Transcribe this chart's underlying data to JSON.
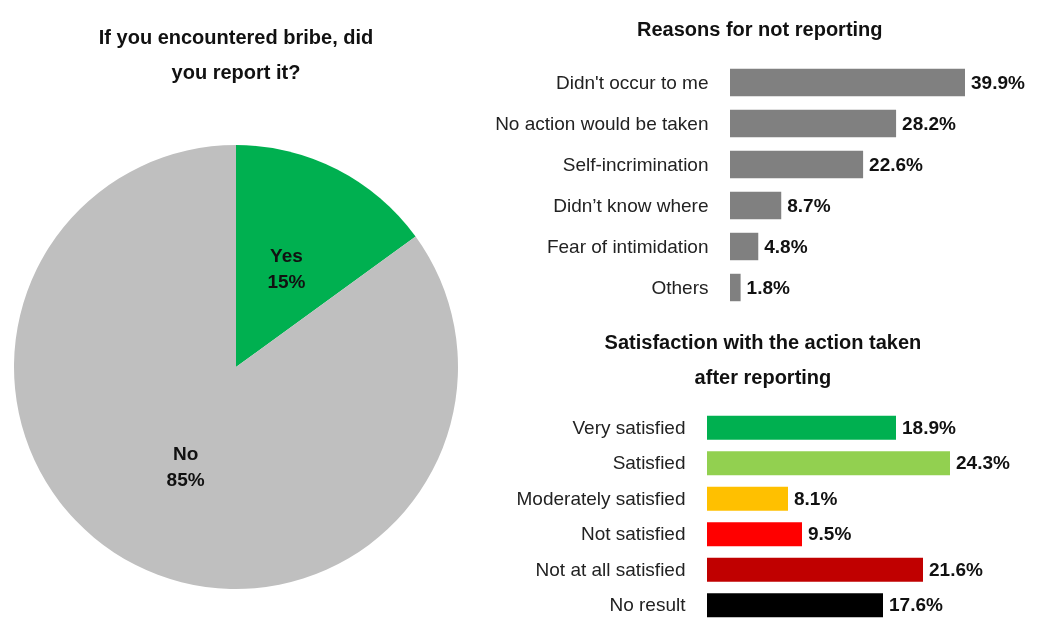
{
  "chart_data": [
    {
      "type": "pie",
      "title": "If you encountered bribe, did you report it?",
      "categories": [
        "Yes",
        "No"
      ],
      "values": [
        15,
        85
      ],
      "colors": [
        "#00b050",
        "#bfbfbf"
      ],
      "value_labels": [
        "15%",
        "85%"
      ]
    },
    {
      "type": "bar",
      "orientation": "horizontal",
      "title": "Reasons for not reporting",
      "categories": [
        "Didn't occur to me",
        "No action would be taken",
        "Self-incrimination",
        "Didn’t know where",
        "Fear of intimidation",
        "Others"
      ],
      "values": [
        39.9,
        28.2,
        22.6,
        8.7,
        4.8,
        1.8
      ],
      "color": "#808080",
      "value_labels": [
        "39.9%",
        "28.2%",
        "22.6%",
        "8.7%",
        "4.8%",
        "1.8%"
      ]
    },
    {
      "type": "bar",
      "orientation": "horizontal",
      "title": "Satisfaction with the action taken after reporting",
      "categories": [
        "Very satisfied",
        "Satisfied",
        "Moderately satisfied",
        "Not satisfied",
        "Not at all satisfied",
        "No result"
      ],
      "values": [
        18.9,
        24.3,
        8.1,
        9.5,
        21.6,
        17.6
      ],
      "colors": [
        "#00b050",
        "#92d050",
        "#ffc000",
        "#ff0000",
        "#c00000",
        "#000000"
      ],
      "value_labels": [
        "18.9%",
        "24.3%",
        "8.1%",
        "9.5%",
        "21.6%",
        "17.6%"
      ]
    }
  ]
}
